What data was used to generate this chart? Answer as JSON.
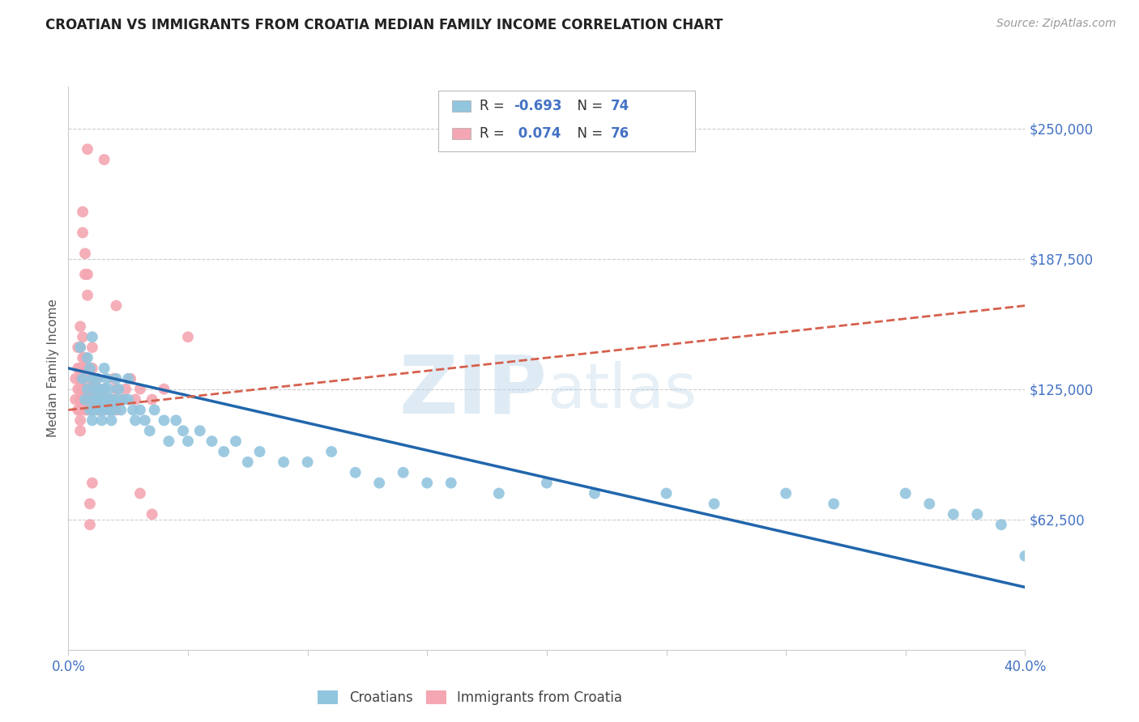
{
  "title": "CROATIAN VS IMMIGRANTS FROM CROATIA MEDIAN FAMILY INCOME CORRELATION CHART",
  "source_text": "Source: ZipAtlas.com",
  "ylabel": "Median Family Income",
  "yticks": [
    0,
    62500,
    125000,
    187500,
    250000
  ],
  "ytick_labels": [
    "",
    "$62,500",
    "$125,000",
    "$187,500",
    "$250,000"
  ],
  "xmin": 0.0,
  "xmax": 0.4,
  "ymin": 0,
  "ymax": 270000,
  "watermark_zip": "ZIP",
  "watermark_atlas": "atlas",
  "legend_label1": "Croatians",
  "legend_label2": "Immigrants from Croatia",
  "blue_color": "#92C5DE",
  "pink_color": "#F4A6B2",
  "blue_line_color": "#2166AC",
  "pink_line_color": "#D6604D",
  "title_color": "#222222",
  "axis_label_color": "#4472C4",
  "grid_color": "#CCCCCC",
  "blue_scatter_x": [
    0.005,
    0.006,
    0.007,
    0.008,
    0.008,
    0.009,
    0.009,
    0.01,
    0.01,
    0.01,
    0.01,
    0.011,
    0.011,
    0.012,
    0.012,
    0.013,
    0.013,
    0.014,
    0.014,
    0.015,
    0.015,
    0.015,
    0.016,
    0.016,
    0.017,
    0.017,
    0.018,
    0.018,
    0.019,
    0.02,
    0.02,
    0.021,
    0.022,
    0.023,
    0.025,
    0.025,
    0.027,
    0.028,
    0.03,
    0.032,
    0.034,
    0.036,
    0.04,
    0.042,
    0.045,
    0.048,
    0.05,
    0.055,
    0.06,
    0.065,
    0.07,
    0.075,
    0.08,
    0.09,
    0.1,
    0.11,
    0.12,
    0.13,
    0.14,
    0.15,
    0.16,
    0.18,
    0.2,
    0.22,
    0.25,
    0.27,
    0.3,
    0.32,
    0.35,
    0.36,
    0.37,
    0.38,
    0.39,
    0.4
  ],
  "blue_scatter_y": [
    145000,
    130000,
    120000,
    140000,
    125000,
    135000,
    115000,
    150000,
    130000,
    120000,
    110000,
    125000,
    115000,
    130000,
    120000,
    115000,
    125000,
    110000,
    120000,
    135000,
    125000,
    115000,
    130000,
    120000,
    125000,
    115000,
    120000,
    110000,
    115000,
    130000,
    120000,
    125000,
    115000,
    120000,
    130000,
    120000,
    115000,
    110000,
    115000,
    110000,
    105000,
    115000,
    110000,
    100000,
    110000,
    105000,
    100000,
    105000,
    100000,
    95000,
    100000,
    90000,
    95000,
    90000,
    90000,
    95000,
    85000,
    80000,
    85000,
    80000,
    80000,
    75000,
    80000,
    75000,
    75000,
    70000,
    75000,
    70000,
    75000,
    70000,
    65000,
    65000,
    60000,
    45000
  ],
  "pink_scatter_x": [
    0.003,
    0.003,
    0.004,
    0.004,
    0.004,
    0.004,
    0.005,
    0.005,
    0.005,
    0.005,
    0.005,
    0.005,
    0.005,
    0.005,
    0.005,
    0.006,
    0.006,
    0.006,
    0.006,
    0.006,
    0.007,
    0.007,
    0.007,
    0.007,
    0.007,
    0.008,
    0.008,
    0.008,
    0.008,
    0.009,
    0.009,
    0.009,
    0.01,
    0.01,
    0.01,
    0.01,
    0.01,
    0.01,
    0.011,
    0.011,
    0.012,
    0.012,
    0.012,
    0.013,
    0.013,
    0.013,
    0.015,
    0.015,
    0.016,
    0.017,
    0.018,
    0.019,
    0.02,
    0.02,
    0.022,
    0.024,
    0.026,
    0.028,
    0.03,
    0.035,
    0.04,
    0.007,
    0.008,
    0.02,
    0.05,
    0.015,
    0.008,
    0.006,
    0.006,
    0.007,
    0.008,
    0.009,
    0.009,
    0.01,
    0.03,
    0.035
  ],
  "pink_scatter_y": [
    130000,
    120000,
    145000,
    135000,
    125000,
    115000,
    155000,
    145000,
    135000,
    130000,
    125000,
    120000,
    115000,
    110000,
    105000,
    150000,
    140000,
    130000,
    125000,
    120000,
    140000,
    135000,
    125000,
    120000,
    115000,
    135000,
    125000,
    120000,
    115000,
    130000,
    125000,
    115000,
    145000,
    135000,
    130000,
    125000,
    120000,
    115000,
    130000,
    120000,
    130000,
    120000,
    115000,
    125000,
    120000,
    115000,
    125000,
    115000,
    120000,
    115000,
    120000,
    130000,
    125000,
    115000,
    120000,
    125000,
    130000,
    120000,
    125000,
    120000,
    125000,
    180000,
    170000,
    165000,
    150000,
    235000,
    240000,
    210000,
    200000,
    190000,
    180000,
    60000,
    70000,
    80000,
    75000,
    65000
  ],
  "blue_trend_x": [
    0.0,
    0.4
  ],
  "blue_trend_y": [
    135000,
    30000
  ],
  "pink_trend_x": [
    0.0,
    0.4
  ],
  "pink_trend_y": [
    115000,
    165000
  ]
}
